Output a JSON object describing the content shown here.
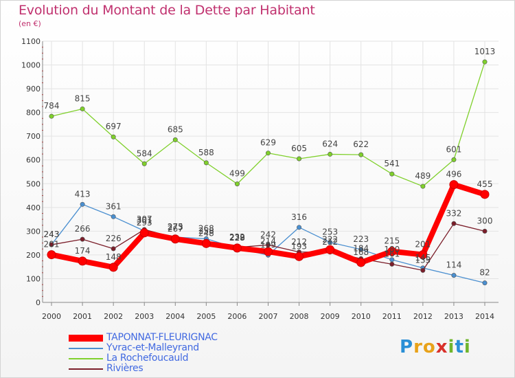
{
  "chart_data": {
    "type": "line",
    "title": "Evolution du Montant de la Dette par Habitant",
    "subtitle": "(en €)",
    "x": [
      "2000",
      "2001",
      "2002",
      "2003",
      "2004",
      "2005",
      "2006",
      "2007",
      "2008",
      "2009",
      "2010",
      "2011",
      "2012",
      "2013",
      "2014"
    ],
    "ylim": [
      0,
      1100
    ],
    "yticks": [
      0,
      100,
      200,
      300,
      400,
      500,
      600,
      700,
      800,
      900,
      1000,
      1100
    ],
    "grid": true,
    "legend_position": "bottom-left",
    "series": [
      {
        "name": "TAPONNAT-FLEURIGNAC",
        "color": "#ff0000",
        "values": [
          201,
          174,
          148,
          293,
          267,
          248,
          229,
          214,
          193,
          222,
          168,
          215,
          201,
          496,
          455
        ]
      },
      {
        "name": "Yvrac-et-Malleyrand",
        "color": "#4a8fd0",
        "values": [
          243,
          413,
          361,
          301,
          275,
          268,
          228,
          199,
          316,
          253,
          223,
          180,
          145,
          114,
          82
        ]
      },
      {
        "name": "La Rochefoucauld",
        "color": "#7fd02b",
        "values": [
          784,
          815,
          697,
          584,
          685,
          588,
          499,
          629,
          605,
          624,
          622,
          541,
          489,
          601,
          1013
        ]
      },
      {
        "name": "Rivières",
        "color": "#7b1e2a",
        "values": [
          243,
          266,
          226,
          307,
          273,
          258,
          232,
          242,
          212,
          212,
          184,
          161,
          135,
          332,
          300
        ]
      }
    ],
    "point_labels": [
      [
        201,
        174,
        148,
        293,
        267,
        248,
        229,
        214,
        193,
        222,
        168,
        215,
        201,
        496,
        455
      ],
      [
        243,
        413,
        361,
        301,
        275,
        268,
        228,
        199,
        316,
        253,
        223,
        180,
        145,
        114,
        82
      ],
      [
        784,
        815,
        697,
        584,
        685,
        588,
        499,
        629,
        605,
        624,
        622,
        541,
        489,
        601,
        1013
      ],
      [
        243,
        266,
        226,
        307,
        273,
        258,
        232,
        242,
        212,
        212,
        184,
        161,
        135,
        332,
        300
      ]
    ]
  },
  "logo": {
    "text": "Proxiti"
  }
}
